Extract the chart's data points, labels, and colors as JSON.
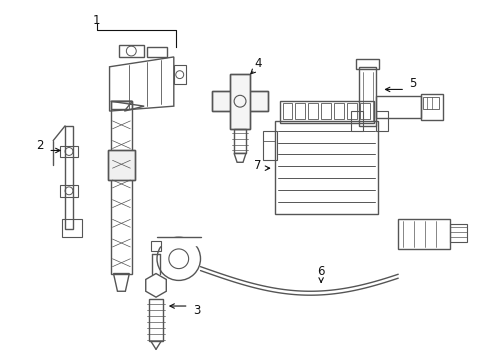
{
  "background_color": "#ffffff",
  "line_color": "#555555",
  "line_width": 1.0,
  "label_fontsize": 8.5,
  "figsize": [
    4.89,
    3.6
  ],
  "dpi": 100
}
